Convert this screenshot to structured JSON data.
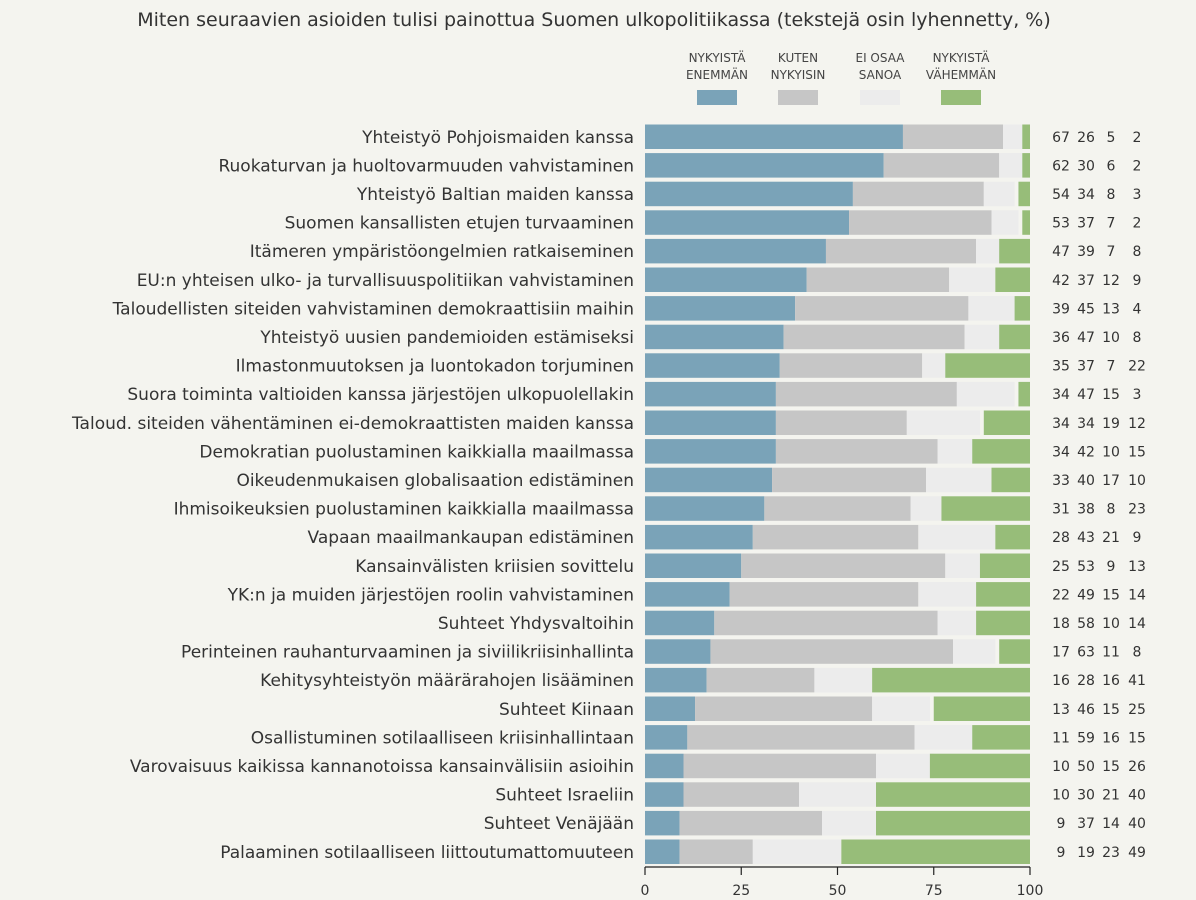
{
  "chart_data": {
    "type": "bar",
    "orientation": "horizontal",
    "stacked": true,
    "title": "Miten seuraavien asioiden tulisi painottua Suomen ulkopolitiikassa (tekstejä osin lyhennetty, %)",
    "xlabel": "",
    "ylabel": "",
    "xlim": [
      0,
      100
    ],
    "xticks": [
      0,
      25,
      50,
      75,
      100
    ],
    "grid": false,
    "legend_position": "top-right",
    "categories": [
      "Yhteistyö Pohjoismaiden kanssa",
      "Ruokaturvan ja huoltovarmuuden vahvistaminen",
      "Yhteistyö Baltian maiden kanssa",
      "Suomen kansallisten etujen turvaaminen",
      "Itämeren ympäristöongelmien ratkaiseminen",
      "EU:n yhteisen ulko- ja turvallisuuspolitiikan vahvistaminen",
      "Taloudellisten siteiden vahvistaminen demokraattisiin maihin",
      "Yhteistyö uusien pandemioiden estämiseksi",
      "Ilmastonmuutoksen ja luontokadon torjuminen",
      "Suora toiminta valtioiden kanssa järjestöjen ulkopuolellakin",
      "Taloud. siteiden vähentäminen ei-demokraattisten maiden kanssa",
      "Demokratian puolustaminen kaikkialla maailmassa",
      "Oikeudenmukaisen globalisaation edistäminen",
      "Ihmisoikeuksien puolustaminen kaikkialla maailmassa",
      "Vapaan maailmankaupan edistäminen",
      "Kansainvälisten kriisien sovittelu",
      "YK:n ja muiden järjestöjen roolin vahvistaminen",
      "Suhteet Yhdysvaltoihin",
      "Perinteinen rauhanturvaaminen ja siviilikriisinhallinta",
      "Kehitysyhteistyön määrärahojen lisääminen",
      "Suhteet Kiinaan",
      "Osallistuminen sotilaalliseen kriisinhallintaan",
      "Varovaisuus kaikissa kannanotoissa kansainvälisiin asioihin",
      "Suhteet Israeliin",
      "Suhteet Venäjään",
      "Palaaminen sotilaalliseen liittoutumattomuuteen"
    ],
    "series": [
      {
        "name": "NYKYISTÄ ENEMMÄN",
        "color": "#7aa3b8",
        "values": [
          67,
          62,
          54,
          53,
          47,
          42,
          39,
          36,
          35,
          34,
          34,
          34,
          33,
          31,
          28,
          25,
          22,
          18,
          17,
          16,
          13,
          11,
          10,
          10,
          9,
          9
        ]
      },
      {
        "name": "KUTEN NYKYISIN",
        "color": "#c6c6c6",
        "values": [
          26,
          30,
          34,
          37,
          39,
          37,
          45,
          47,
          37,
          47,
          34,
          42,
          40,
          38,
          43,
          53,
          49,
          58,
          63,
          28,
          46,
          59,
          50,
          30,
          37,
          19
        ]
      },
      {
        "name": "EI OSAA SANOA",
        "color": "#ececec",
        "values": [
          5,
          6,
          8,
          7,
          7,
          12,
          13,
          10,
          7,
          15,
          19,
          10,
          17,
          8,
          21,
          9,
          15,
          10,
          11,
          16,
          15,
          16,
          15,
          21,
          14,
          23
        ]
      },
      {
        "name": "NYKYISTÄ VÄHEMMÄN",
        "color": "#97bd79",
        "values": [
          2,
          2,
          3,
          2,
          8,
          9,
          4,
          8,
          22,
          3,
          12,
          15,
          10,
          23,
          9,
          13,
          14,
          14,
          8,
          41,
          25,
          15,
          26,
          40,
          40,
          49
        ]
      }
    ],
    "legend": [
      {
        "line1": "NYKYISTÄ",
        "line2": "ENEMMÄN"
      },
      {
        "line1": "KUTEN",
        "line2": "NYKYISIN"
      },
      {
        "line1": "EI OSAA",
        "line2": "SANOA"
      },
      {
        "line1": "NYKYISTÄ",
        "line2": "VÄHEMMÄN"
      }
    ]
  }
}
